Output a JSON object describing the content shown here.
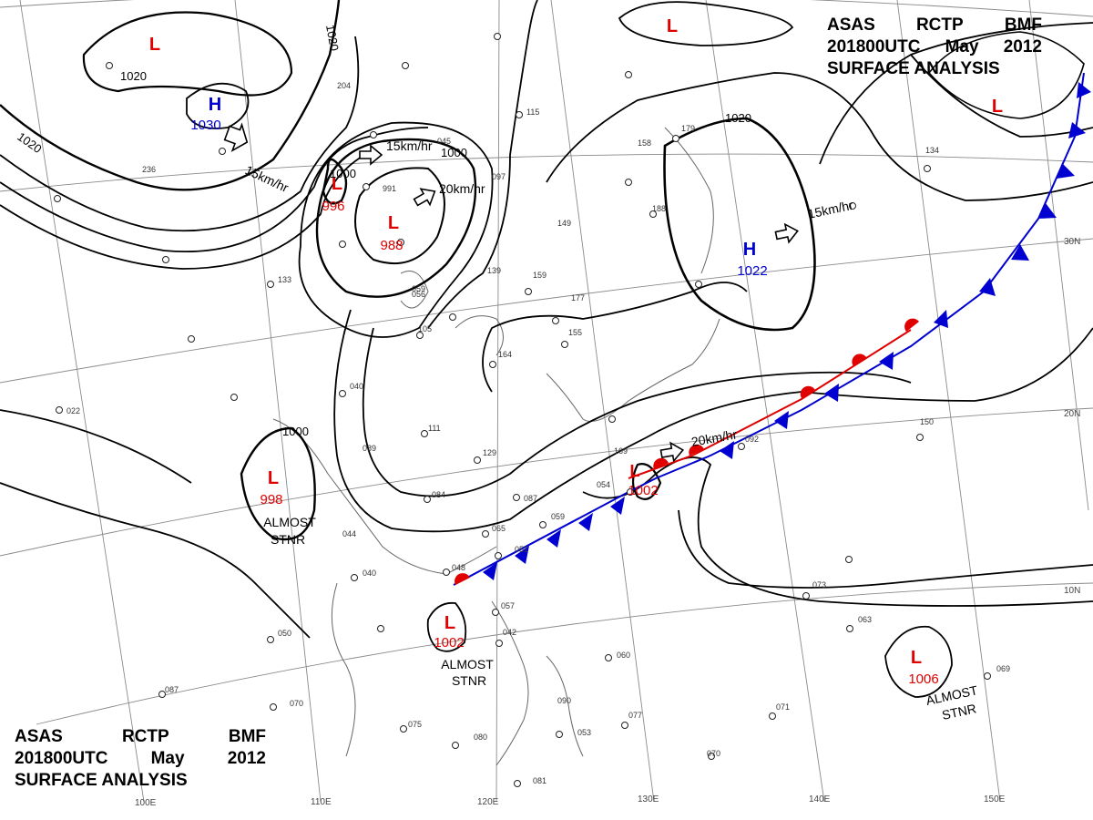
{
  "header": {
    "line1": [
      "ASAS",
      "RCTP",
      "BMF"
    ],
    "line2": [
      "201800UTC",
      "May",
      "2012"
    ],
    "line3": "SURFACE ANALYSIS"
  },
  "colors": {
    "low": "#e00000",
    "high": "#0000d0",
    "warm_front": "#e00000",
    "cold_front": "#0000d0",
    "isobar": "#000000",
    "grid": "#888888"
  },
  "pressure_centers": [
    {
      "id": "low-north-mongolia",
      "type": "L",
      "value": ""
    },
    {
      "id": "low-northeast-top",
      "type": "L",
      "value": ""
    },
    {
      "id": "low-far-northeast",
      "type": "L",
      "value": ""
    },
    {
      "id": "high-northwest",
      "type": "H",
      "value": "1030"
    },
    {
      "id": "low-manchuria-west",
      "type": "L",
      "value": "996"
    },
    {
      "id": "low-manchuria",
      "type": "L",
      "value": "988"
    },
    {
      "id": "high-pacific",
      "type": "H",
      "value": "1022"
    },
    {
      "id": "low-south-china",
      "type": "L",
      "value": "998"
    },
    {
      "id": "low-okinawa",
      "type": "L",
      "value": "1002"
    },
    {
      "id": "low-south-china-sea",
      "type": "L",
      "value": "1002"
    },
    {
      "id": "low-west-pacific",
      "type": "L",
      "value": "1006"
    }
  ],
  "isobar_labels": [
    "1020",
    "1020",
    "1020",
    "1020",
    "1000",
    "1000",
    "1000"
  ],
  "motion_labels": [
    "15km/hr",
    "15km/hr",
    "20km/hr",
    "15km/hr",
    "20km/hr"
  ],
  "annotations": [
    "ALMOST",
    "STNR",
    "ALMOST",
    "STNR",
    "ALMOST",
    "STNR"
  ],
  "longitude_labels": [
    "100E",
    "110E",
    "120E",
    "130E",
    "140E",
    "150E"
  ],
  "latitude_labels": [
    "30N",
    "20N",
    "10N"
  ],
  "station_numbers": [
    "236",
    "133",
    "022",
    "040",
    "089",
    "111",
    "129",
    "084",
    "087",
    "065",
    "044",
    "040",
    "051",
    "048",
    "050",
    "087",
    "070",
    "075",
    "080",
    "081",
    "053",
    "057",
    "042",
    "060",
    "077",
    "090",
    "155",
    "164",
    "177",
    "139",
    "159",
    "149",
    "158",
    "179",
    "188",
    "115",
    "045",
    "059",
    "105",
    "204",
    "134",
    "150",
    "092",
    "073",
    "063",
    "069",
    "071",
    "070",
    "056",
    "059",
    "054",
    "169",
    "097",
    "991"
  ]
}
